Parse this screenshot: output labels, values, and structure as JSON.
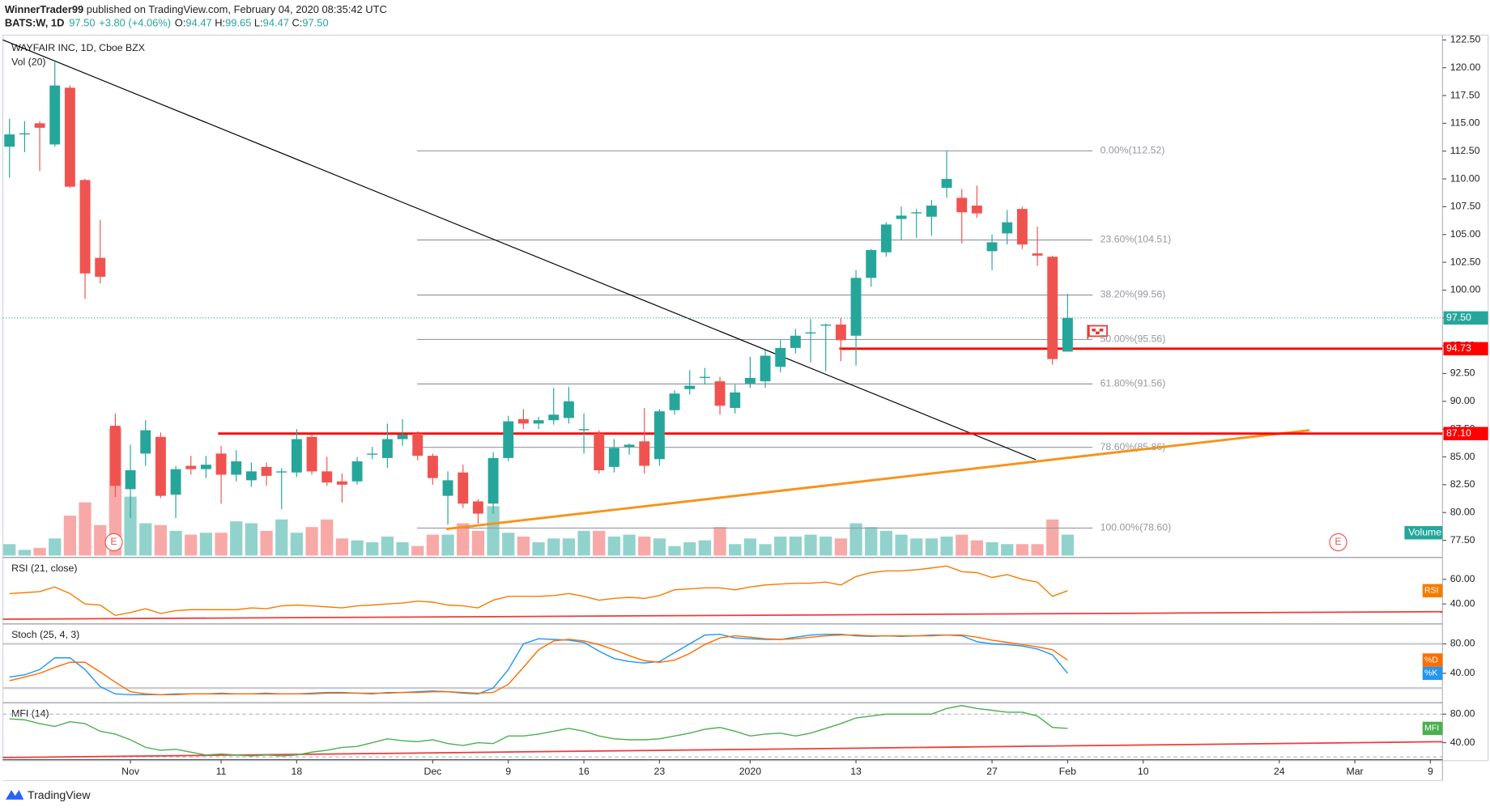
{
  "header": {
    "author": "WinnerTrader99",
    "published": " published on TradingView.com, February 04, 2020 08:35:42 UTC",
    "symbol": "BATS:W, 1D",
    "last": "97.50",
    "change": "+3.80 (+4.06%)",
    "quote": [
      {
        "label": "O:",
        "value": "94.47"
      },
      {
        "label": "H:",
        "value": "99.65"
      },
      {
        "label": "L:",
        "value": "94.47"
      },
      {
        "label": "C:",
        "value": "97.50"
      }
    ]
  },
  "footer": {
    "brand": "TradingView"
  },
  "chart_data": [
    {
      "type": "candlestick",
      "title": "WAYFAIR INC, 1D, Cboe BZX",
      "subtitle": "Vol (20)",
      "up_color": "#26a69a",
      "down_color": "#ef5350",
      "xlim": [
        -0.44,
        94.8
      ],
      "xticks": [
        {
          "value": 8,
          "label": "Nov"
        },
        {
          "value": 14,
          "label": "11"
        },
        {
          "value": 19,
          "label": "18"
        },
        {
          "value": 28,
          "label": "Dec"
        },
        {
          "value": 33,
          "label": "9"
        },
        {
          "value": 38,
          "label": "16"
        },
        {
          "value": 43,
          "label": "23"
        },
        {
          "value": 49,
          "label": "2020"
        },
        {
          "value": 56,
          "label": "13"
        },
        {
          "value": 65,
          "label": "27"
        },
        {
          "value": 70,
          "label": "Feb"
        },
        {
          "value": 75,
          "label": "10"
        },
        {
          "value": 84,
          "label": "24"
        },
        {
          "value": 89,
          "label": "Mar"
        },
        {
          "value": 94,
          "label": "9"
        }
      ],
      "ylim": [
        76.13,
        122.93
      ],
      "yticks": [
        {
          "value": 77.5,
          "label": "77.50"
        },
        {
          "value": 80,
          "label": "80.00"
        },
        {
          "value": 82.5,
          "label": "82.50"
        },
        {
          "value": 85,
          "label": "85.00"
        },
        {
          "value": 87.5,
          "label": "87.50"
        },
        {
          "value": 90,
          "label": "90.00"
        },
        {
          "value": 92.5,
          "label": "92.50"
        },
        {
          "value": 95,
          "label": "95.00"
        },
        {
          "value": 97.5,
          "label": "97.50"
        },
        {
          "value": 100,
          "label": "100.00"
        },
        {
          "value": 102.5,
          "label": "102.50"
        },
        {
          "value": 105,
          "label": "105.00"
        },
        {
          "value": 107.5,
          "label": "107.50"
        },
        {
          "value": 110,
          "label": "110.00"
        },
        {
          "value": 112.5,
          "label": "112.50"
        },
        {
          "value": 115,
          "label": "115.00"
        },
        {
          "value": 117.5,
          "label": "117.50"
        },
        {
          "value": 120,
          "label": "120.00"
        },
        {
          "value": 122.5,
          "label": "122.50"
        }
      ],
      "ohlc": [
        [
          112.9,
          115.4,
          110.1,
          114.0
        ],
        [
          114.0,
          115.2,
          112.4,
          114.1
        ],
        [
          115.0,
          115.2,
          110.7,
          114.6
        ],
        [
          113.1,
          120.5,
          112.9,
          118.4
        ],
        [
          118.2,
          118.4,
          109.2,
          109.3
        ],
        [
          109.9,
          110.0,
          99.2,
          101.5
        ],
        [
          102.9,
          106.3,
          100.6,
          101.2
        ],
        [
          87.8,
          88.9,
          81.4,
          82.4
        ],
        [
          82.1,
          86.1,
          79.5,
          83.8
        ],
        [
          85.3,
          88.3,
          84.2,
          87.4
        ],
        [
          86.8,
          87.2,
          81.3,
          81.5
        ],
        [
          81.6,
          84.2,
          79.5,
          83.9
        ],
        [
          84.2,
          85.1,
          83.4,
          83.9
        ],
        [
          83.9,
          85.1,
          83.1,
          84.3
        ],
        [
          85.3,
          86.0,
          80.8,
          83.4
        ],
        [
          83.4,
          85.6,
          82.8,
          84.6
        ],
        [
          82.9,
          84.5,
          82.3,
          83.7
        ],
        [
          84.1,
          84.5,
          82.4,
          83.3
        ],
        [
          83.6,
          84.0,
          80.3,
          83.7
        ],
        [
          83.6,
          87.5,
          83.2,
          86.6
        ],
        [
          86.8,
          87.0,
          83.4,
          83.7
        ],
        [
          83.7,
          85.0,
          82.4,
          82.7
        ],
        [
          82.8,
          83.5,
          80.9,
          82.5
        ],
        [
          82.8,
          85.0,
          82.5,
          84.6
        ],
        [
          85.2,
          85.9,
          84.8,
          85.3
        ],
        [
          84.9,
          88.0,
          84.0,
          86.6
        ],
        [
          86.6,
          88.4,
          86.0,
          87.0
        ],
        [
          87.1,
          87.3,
          84.7,
          85.1
        ],
        [
          85.1,
          85.3,
          82.5,
          83.1
        ],
        [
          81.5,
          83.7,
          78.9,
          82.9
        ],
        [
          83.6,
          84.3,
          80.4,
          80.8
        ],
        [
          81.0,
          81.2,
          79.0,
          79.9
        ],
        [
          80.8,
          85.4,
          79.9,
          84.9
        ],
        [
          84.9,
          88.7,
          84.6,
          88.2
        ],
        [
          88.4,
          89.3,
          87.5,
          88.0
        ],
        [
          88.0,
          88.6,
          87.5,
          88.3
        ],
        [
          88.3,
          91.2,
          87.9,
          88.8
        ],
        [
          88.5,
          91.3,
          88.0,
          90.0
        ],
        [
          87.4,
          88.9,
          85.3,
          87.5
        ],
        [
          87.1,
          87.4,
          83.5,
          83.8
        ],
        [
          84.1,
          86.6,
          83.6,
          85.8
        ],
        [
          85.9,
          86.2,
          85.2,
          86.1
        ],
        [
          86.4,
          89.4,
          83.5,
          84.2
        ],
        [
          84.8,
          89.3,
          84.2,
          89.1
        ],
        [
          89.2,
          91.0,
          88.8,
          90.7
        ],
        [
          91.1,
          92.8,
          90.6,
          91.4
        ],
        [
          92.1,
          93.0,
          91.5,
          92.2
        ],
        [
          91.8,
          92.2,
          88.8,
          89.6
        ],
        [
          89.4,
          91.5,
          88.9,
          90.8
        ],
        [
          91.6,
          94.0,
          91.2,
          92.1
        ],
        [
          91.8,
          94.6,
          91.2,
          94.1
        ],
        [
          93.1,
          95.5,
          92.6,
          94.8
        ],
        [
          94.8,
          96.5,
          94.3,
          95.9
        ],
        [
          96.1,
          97.4,
          93.5,
          96.2
        ],
        [
          96.8,
          97.0,
          92.7,
          96.9
        ],
        [
          96.9,
          97.5,
          93.6,
          95.5
        ],
        [
          95.9,
          101.8,
          93.2,
          101.1
        ],
        [
          101.1,
          103.7,
          100.3,
          103.6
        ],
        [
          103.4,
          106.1,
          103.0,
          105.9
        ],
        [
          106.4,
          107.5,
          104.5,
          106.7
        ],
        [
          106.9,
          107.3,
          104.7,
          107.0
        ],
        [
          106.6,
          108.1,
          104.9,
          107.6
        ],
        [
          109.2,
          112.5,
          108.3,
          110.0
        ],
        [
          108.3,
          109.1,
          104.2,
          107.0
        ],
        [
          107.6,
          109.4,
          106.5,
          106.9
        ],
        [
          103.5,
          105.0,
          101.8,
          104.3
        ],
        [
          105.1,
          107.2,
          104.1,
          106.1
        ],
        [
          107.3,
          107.5,
          103.7,
          104.1
        ],
        [
          103.3,
          105.7,
          102.2,
          103.1
        ],
        [
          103.0,
          103.1,
          93.3,
          93.8
        ],
        [
          94.47,
          99.65,
          94.47,
          97.5
        ]
      ],
      "volume": {
        "name": "Volume",
        "color": "#26a69a",
        "ylim": [
          0,
          27.4
        ],
        "values": [
          0.6,
          0.3,
          0.4,
          0.9,
          2.1,
          2.8,
          1.6,
          6.7,
          3.1,
          1.7,
          1.6,
          1.3,
          1.1,
          1.2,
          1.2,
          1.8,
          1.7,
          1.3,
          1.9,
          1.2,
          1.5,
          1.9,
          0.9,
          0.8,
          0.7,
          1.0,
          0.7,
          0.5,
          1.1,
          1.1,
          1.7,
          1.3,
          2.6,
          1.2,
          1.0,
          0.7,
          0.9,
          0.9,
          1.3,
          1.3,
          1.0,
          1.1,
          1.0,
          0.9,
          0.5,
          0.7,
          0.8,
          1.5,
          0.6,
          0.9,
          0.6,
          1.0,
          1.0,
          1.1,
          1.0,
          0.9,
          1.7,
          1.5,
          1.3,
          1.1,
          0.9,
          0.9,
          1.0,
          1.1,
          0.8,
          0.7,
          0.6,
          0.6,
          0.6,
          1.9,
          1.1
        ]
      },
      "hlines": [
        {
          "value": 97.5,
          "label": "97.50",
          "color": "#26a69a",
          "style": "dotted",
          "x_start": -0.44
        },
        {
          "value": 94.73,
          "label": "94.73",
          "color": "#ff0000",
          "style": "solid",
          "x_start": 54.9
        },
        {
          "value": 87.1,
          "label": "87.10",
          "color": "#ff0000",
          "style": "solid",
          "x_start": 13.8
        }
      ],
      "fib": {
        "color": "#9598a1",
        "x_range": [
          26.96,
          71.65
        ],
        "levels": [
          {
            "value": 112.52,
            "label": "0.00%(112.52)"
          },
          {
            "value": 104.51,
            "label": "23.60%(104.51)"
          },
          {
            "value": 99.56,
            "label": "38.20%(99.56)"
          },
          {
            "value": 95.56,
            "label": "50.00%(95.56)"
          },
          {
            "value": 91.56,
            "label": "61.80%(91.56)"
          },
          {
            "value": 85.86,
            "label": "78.60%(85.86)"
          },
          {
            "value": 78.6,
            "label": "100.00%(78.60)"
          }
        ]
      },
      "trendlines": [
        {
          "color": "#000000",
          "width": 1,
          "points": [
            [
              -0.44,
              122.5
            ],
            [
              67.9,
              84.75
            ]
          ]
        },
        {
          "color": "#f7931a",
          "width": 2.5,
          "points": [
            [
              28.9,
              78.52
            ],
            [
              86.0,
              87.4
            ]
          ]
        }
      ],
      "earnings": [
        {
          "x": 6.9,
          "label": "E"
        },
        {
          "x": 87.9,
          "label": "E"
        }
      ]
    },
    {
      "type": "line",
      "title": "RSI (21, close)",
      "ylim": [
        25.4,
        76.2
      ],
      "yticks": [
        {
          "value": 60,
          "label": "60.00"
        },
        {
          "value": 40,
          "label": "40.00"
        }
      ],
      "series": [
        {
          "name": "RSI",
          "color": "#f57c00",
          "values": [
            48.5,
            49.2,
            50,
            53.8,
            48.5,
            40,
            39.2,
            30.8,
            33.1,
            36.2,
            32.3,
            34.6,
            35.4,
            35.4,
            35.4,
            35.4,
            36.9,
            36.2,
            38.5,
            39.2,
            38.5,
            37.7,
            36.9,
            38.5,
            39.2,
            40,
            40.8,
            42.3,
            41.5,
            39.2,
            38.5,
            36.9,
            43.1,
            46.2,
            46.2,
            46.2,
            46.9,
            48.5,
            46.2,
            43.1,
            44.6,
            45.4,
            44.6,
            46.9,
            51.5,
            52.3,
            53.1,
            53.1,
            51.5,
            53.8,
            55.4,
            56.2,
            56.9,
            56.9,
            57.7,
            55.4,
            62.3,
            65.4,
            66.9,
            66.9,
            67.7,
            69.2,
            70.8,
            66.2,
            65.4,
            61.5,
            63.8,
            60,
            57.7,
            46.2,
            50.8
          ]
        }
      ],
      "trendlines": [
        {
          "color": "#ef3b3b",
          "width": 1.5,
          "points": [
            [
              -0.44,
              27.7
            ],
            [
              94.8,
              33.8
            ]
          ]
        }
      ]
    },
    {
      "type": "line",
      "title": "Stoch (25, 4, 3)",
      "ylim": [
        2.6,
        104.5
      ],
      "yticks": [
        {
          "value": 80,
          "label": "80.00"
        },
        {
          "value": 40,
          "label": "40.00"
        }
      ],
      "bands": [
        80,
        20
      ],
      "band_style": "solid",
      "series": [
        {
          "name": "%K",
          "color": "#2196f3",
          "values": [
            35,
            38,
            45,
            61,
            61,
            45,
            22,
            12,
            11,
            11,
            11,
            12,
            12,
            12,
            13,
            12,
            12,
            13,
            12,
            12,
            13,
            14,
            14,
            13,
            12,
            14,
            14,
            15,
            16,
            15,
            13,
            12,
            20,
            45,
            80,
            87,
            86,
            85,
            82,
            70,
            60,
            56,
            54,
            56,
            68,
            80,
            92,
            93,
            88,
            87,
            86,
            86,
            89,
            92,
            93,
            93,
            91,
            90,
            91,
            90,
            91,
            92,
            92,
            91,
            83,
            80,
            79,
            77,
            73,
            65,
            40
          ]
        },
        {
          "name": "%D",
          "color": "#ff6d00",
          "values": [
            30,
            35,
            40,
            48,
            55,
            55,
            42,
            28,
            15,
            12,
            11,
            11,
            12,
            12,
            12,
            12,
            12,
            12,
            12,
            12,
            12,
            13,
            13,
            13,
            13,
            13,
            14,
            14,
            15,
            15,
            14,
            13,
            14,
            25,
            48,
            72,
            84,
            86,
            84,
            79,
            72,
            64,
            57,
            55,
            58,
            67,
            79,
            88,
            91,
            89,
            87,
            86,
            87,
            89,
            91,
            92,
            92,
            91,
            91,
            91,
            91,
            91,
            92,
            92,
            89,
            85,
            82,
            79,
            76,
            72,
            58
          ]
        }
      ]
    },
    {
      "type": "line",
      "title": "MFI (14)",
      "ylim": [
        18.7,
        93.3
      ],
      "yticks": [
        {
          "value": 80,
          "label": "80.00"
        },
        {
          "value": 40,
          "label": "40.00"
        }
      ],
      "bands": [
        80,
        20
      ],
      "band_style": "dashed",
      "series": [
        {
          "name": "MFI",
          "color": "#4caf50",
          "values": [
            73.3,
            72,
            66.7,
            62.7,
            69.3,
            66.7,
            56,
            52,
            44,
            33.3,
            29.3,
            30.7,
            26.7,
            22.7,
            24,
            22.7,
            21.3,
            22.7,
            21.3,
            22.7,
            26.7,
            29.3,
            33.3,
            34.7,
            40,
            45.3,
            42.7,
            41.3,
            44,
            38.7,
            36,
            40,
            38.7,
            49.3,
            49.3,
            52,
            56,
            60,
            56,
            49.3,
            45.3,
            44,
            44,
            45.3,
            49.3,
            53.3,
            58.7,
            61.3,
            56,
            49.3,
            52,
            53.3,
            49.3,
            53.3,
            60,
            66.7,
            74.7,
            77.3,
            80,
            80,
            80,
            80,
            88,
            92,
            88,
            85.3,
            82.7,
            82.7,
            77.3,
            61.3,
            60
          ]
        }
      ],
      "trendlines": [
        {
          "color": "#ef3b3b",
          "width": 1.5,
          "points": [
            [
              -0.44,
              19
            ],
            [
              94.8,
              41.3
            ]
          ]
        }
      ]
    }
  ]
}
